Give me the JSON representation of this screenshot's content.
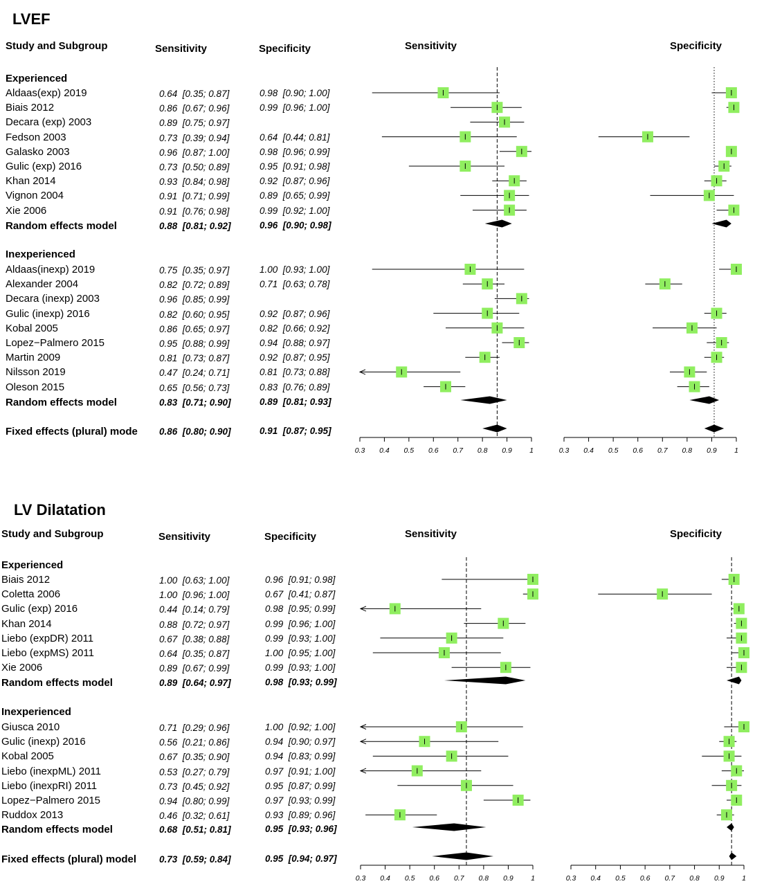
{
  "panels": [
    {
      "title": "LVEF",
      "headers": {
        "study": "Study and Subgroup",
        "sens": "Sensitivity",
        "spec": "Specificity",
        "sens_plot": "Sensitivity",
        "spec_plot": "Specificity"
      },
      "groups": [
        {
          "label": "Experienced",
          "studies": [
            {
              "name": "Aldaas(exp) 2019",
              "sens": "0.64  [0.35; 0.87]",
              "spec": "0.98  [0.90; 1.00]"
            },
            {
              "name": "Biais 2012",
              "sens": "0.86  [0.67; 0.96]",
              "spec": "0.99  [0.96; 1.00]"
            },
            {
              "name": "Decara (exp) 2003",
              "sens": "0.89  [0.75; 0.97]",
              "spec": ""
            },
            {
              "name": "Fedson 2003",
              "sens": "0.73  [0.39; 0.94]",
              "spec": "0.64  [0.44; 0.81]"
            },
            {
              "name": "Galasko 2003",
              "sens": "0.96  [0.87; 1.00]",
              "spec": "0.98  [0.96; 0.99]"
            },
            {
              "name": "Gulic (exp) 2016",
              "sens": "0.73  [0.50; 0.89]",
              "spec": "0.95  [0.91; 0.98]"
            },
            {
              "name": "Khan 2014",
              "sens": "0.93  [0.84; 0.98]",
              "spec": "0.92  [0.87; 0.96]"
            },
            {
              "name": "Vignon 2004",
              "sens": "0.91  [0.71; 0.99]",
              "spec": "0.89  [0.65; 0.99]"
            },
            {
              "name": "Xie 2006",
              "sens": "0.91  [0.76; 0.98]",
              "spec": "0.99  [0.92; 1.00]"
            }
          ],
          "summary": {
            "name": "Random effects model",
            "sens": "0.88  [0.81; 0.92]",
            "spec": "0.96  [0.90; 0.98]"
          }
        },
        {
          "label": "Inexperienced",
          "studies": [
            {
              "name": "Aldaas(inexp) 2019",
              "sens": "0.75  [0.35; 0.97]",
              "spec": "1.00  [0.93; 1.00]"
            },
            {
              "name": "Alexander 2004",
              "sens": "0.82  [0.72; 0.89]",
              "spec": "0.71  [0.63; 0.78]"
            },
            {
              "name": "Decara (inexp) 2003",
              "sens": "0.96  [0.85; 0.99]",
              "spec": ""
            },
            {
              "name": "Gulic (inexp) 2016",
              "sens": "0.82  [0.60; 0.95]",
              "spec": "0.92  [0.87; 0.96]"
            },
            {
              "name": "Kobal 2005",
              "sens": "0.86  [0.65; 0.97]",
              "spec": "0.82  [0.66; 0.92]"
            },
            {
              "name": "Lopez−Palmero 2015",
              "sens": "0.95  [0.88; 0.99]",
              "spec": "0.94  [0.88; 0.97]"
            },
            {
              "name": "Martin 2009",
              "sens": "0.81  [0.73; 0.87]",
              "spec": "0.92  [0.87; 0.95]"
            },
            {
              "name": "Nilsson 2019",
              "sens": "0.47  [0.24; 0.71]",
              "spec": "0.81  [0.73; 0.88]"
            },
            {
              "name": "Oleson 2015",
              "sens": "0.65  [0.56; 0.73]",
              "spec": "0.83  [0.76; 0.89]"
            }
          ],
          "summary": {
            "name": "Random effects model",
            "sens": "0.83  [0.71; 0.90]",
            "spec": "0.89  [0.81; 0.93]"
          }
        }
      ],
      "overall": {
        "name": "Fixed effects (plural) mode",
        "sens": "0.86  [0.80; 0.90]",
        "spec": "0.91  [0.87; 0.95]"
      }
    },
    {
      "title": "LV Dilatation",
      "headers": {
        "study": "Study and Subgroup",
        "sens": "Sensitivity",
        "spec": "Specificity",
        "sens_plot": "Sensitivity",
        "spec_plot": "Specificity"
      },
      "groups": [
        {
          "label": "Experienced",
          "studies": [
            {
              "name": "Biais 2012",
              "sens": "1.00  [0.63; 1.00]",
              "spec": "0.96  [0.91; 0.98]"
            },
            {
              "name": "Coletta 2006",
              "sens": "1.00  [0.96; 1.00]",
              "spec": "0.67  [0.41; 0.87]"
            },
            {
              "name": "Gulic (exp) 2016",
              "sens": "0.44  [0.14; 0.79]",
              "spec": "0.98  [0.95; 0.99]"
            },
            {
              "name": "Khan 2014",
              "sens": "0.88  [0.72; 0.97]",
              "spec": "0.99  [0.96; 1.00]"
            },
            {
              "name": "Liebo (expDR) 2011",
              "sens": "0.67  [0.38; 0.88]",
              "spec": "0.99  [0.93; 1.00]"
            },
            {
              "name": "Liebo (expMS) 2011",
              "sens": "0.64  [0.35; 0.87]",
              "spec": "1.00  [0.95; 1.00]"
            },
            {
              "name": "Xie 2006",
              "sens": "0.89  [0.67; 0.99]",
              "spec": "0.99  [0.93; 1.00]"
            }
          ],
          "summary": {
            "name": "Random effects model",
            "sens": "0.89  [0.64; 0.97]",
            "spec": "0.98  [0.93; 0.99]"
          }
        },
        {
          "label": "Inexperienced",
          "studies": [
            {
              "name": "Giusca 2010",
              "sens": "0.71  [0.29; 0.96]",
              "spec": "1.00  [0.92; 1.00]"
            },
            {
              "name": "Gulic (inexp) 2016",
              "sens": "0.56  [0.21; 0.86]",
              "spec": "0.94  [0.90; 0.97]"
            },
            {
              "name": "Kobal 2005",
              "sens": "0.67  [0.35; 0.90]",
              "spec": "0.94  [0.83; 0.99]"
            },
            {
              "name": "Liebo (inexpML) 2011",
              "sens": "0.53  [0.27; 0.79]",
              "spec": "0.97  [0.91; 1.00]"
            },
            {
              "name": "Liebo (inexpRI) 2011",
              "sens": "0.73  [0.45; 0.92]",
              "spec": "0.95  [0.87; 0.99]"
            },
            {
              "name": "Lopez−Palmero 2015",
              "sens": "0.94  [0.80; 0.99]",
              "spec": "0.97  [0.93; 0.99]"
            },
            {
              "name": "Ruddox 2013",
              "sens": "0.46  [0.32; 0.61]",
              "spec": "0.93  [0.89; 0.96]"
            }
          ],
          "summary": {
            "name": "Random effects model",
            "sens": "0.68  [0.51; 0.81]",
            "spec": "0.95  [0.93; 0.96]"
          }
        }
      ],
      "overall": {
        "name": "Fixed effects (plural) model",
        "sens": "0.73  [0.59; 0.84]",
        "spec": "0.95  [0.94; 0.97]"
      }
    }
  ],
  "colors": {
    "marker": "#90ee60",
    "line": "#000000",
    "diamond": "#000000"
  },
  "chart_data": [
    {
      "type": "forest",
      "title": "LVEF",
      "xlim": [
        0.3,
        1.0
      ],
      "ticks": [
        "0.3",
        "0.4",
        "0.5",
        "0.6",
        "0.7",
        "0.8",
        "0.9",
        "1"
      ],
      "sensitivity": {
        "reference_line": 0.86,
        "reference_style": "dashed",
        "studies": [
          [
            0.64,
            0.35,
            0.87
          ],
          [
            0.86,
            0.67,
            0.96
          ],
          [
            0.89,
            0.75,
            0.97
          ],
          [
            0.73,
            0.39,
            0.94
          ],
          [
            0.96,
            0.87,
            1.0
          ],
          [
            0.73,
            0.5,
            0.89
          ],
          [
            0.93,
            0.84,
            0.98
          ],
          [
            0.91,
            0.71,
            0.99
          ],
          [
            0.91,
            0.76,
            0.98
          ],
          [
            0.75,
            0.35,
            0.97
          ],
          [
            0.82,
            0.72,
            0.89
          ],
          [
            0.96,
            0.85,
            0.99
          ],
          [
            0.82,
            0.6,
            0.95
          ],
          [
            0.86,
            0.65,
            0.97
          ],
          [
            0.95,
            0.88,
            0.99
          ],
          [
            0.81,
            0.73,
            0.87
          ],
          [
            0.47,
            0.24,
            0.71
          ],
          [
            0.65,
            0.56,
            0.73
          ]
        ],
        "summaries": [
          [
            0.88,
            0.81,
            0.92
          ],
          [
            0.83,
            0.71,
            0.9
          ]
        ],
        "overall": [
          0.86,
          0.8,
          0.9
        ]
      },
      "specificity": {
        "reference_line": 0.91,
        "reference_style": "dotted",
        "studies": [
          [
            0.98,
            0.9,
            1.0
          ],
          [
            0.99,
            0.96,
            1.0
          ],
          null,
          [
            0.64,
            0.44,
            0.81
          ],
          [
            0.98,
            0.96,
            0.99
          ],
          [
            0.95,
            0.91,
            0.98
          ],
          [
            0.92,
            0.87,
            0.96
          ],
          [
            0.89,
            0.65,
            0.99
          ],
          [
            0.99,
            0.92,
            1.0
          ],
          [
            1.0,
            0.93,
            1.0
          ],
          [
            0.71,
            0.63,
            0.78
          ],
          null,
          [
            0.92,
            0.87,
            0.96
          ],
          [
            0.82,
            0.66,
            0.92
          ],
          [
            0.94,
            0.88,
            0.97
          ],
          [
            0.92,
            0.87,
            0.95
          ],
          [
            0.81,
            0.73,
            0.88
          ],
          [
            0.83,
            0.76,
            0.89
          ]
        ],
        "summaries": [
          [
            0.96,
            0.9,
            0.98
          ],
          [
            0.89,
            0.81,
            0.93
          ]
        ],
        "overall": [
          0.91,
          0.87,
          0.95
        ]
      }
    },
    {
      "type": "forest",
      "title": "LV Dilatation",
      "xlim": [
        0.3,
        1.0
      ],
      "ticks": [
        "0.3",
        "0.4",
        "0.5",
        "0.6",
        "0.7",
        "0.8",
        "0.9",
        "1"
      ],
      "sensitivity": {
        "reference_line": 0.73,
        "reference_style": "dashed",
        "studies": [
          [
            1.0,
            0.63,
            1.0
          ],
          [
            1.0,
            0.96,
            1.0
          ],
          [
            0.44,
            0.14,
            0.79
          ],
          [
            0.88,
            0.72,
            0.97
          ],
          [
            0.67,
            0.38,
            0.88
          ],
          [
            0.64,
            0.35,
            0.87
          ],
          [
            0.89,
            0.67,
            0.99
          ],
          [
            0.71,
            0.29,
            0.96
          ],
          [
            0.56,
            0.21,
            0.86
          ],
          [
            0.67,
            0.35,
            0.9
          ],
          [
            0.53,
            0.27,
            0.79
          ],
          [
            0.73,
            0.45,
            0.92
          ],
          [
            0.94,
            0.8,
            0.99
          ],
          [
            0.46,
            0.32,
            0.61
          ]
        ],
        "summaries": [
          [
            0.89,
            0.64,
            0.97
          ],
          [
            0.68,
            0.51,
            0.81
          ]
        ],
        "overall": [
          0.73,
          0.59,
          0.84
        ]
      },
      "specificity": {
        "reference_line": 0.95,
        "reference_style": "dashed",
        "studies": [
          [
            0.96,
            0.91,
            0.98
          ],
          [
            0.67,
            0.41,
            0.87
          ],
          [
            0.98,
            0.95,
            0.99
          ],
          [
            0.99,
            0.96,
            1.0
          ],
          [
            0.99,
            0.93,
            1.0
          ],
          [
            1.0,
            0.95,
            1.0
          ],
          [
            0.99,
            0.93,
            1.0
          ],
          [
            1.0,
            0.92,
            1.0
          ],
          [
            0.94,
            0.9,
            0.97
          ],
          [
            0.94,
            0.83,
            0.99
          ],
          [
            0.97,
            0.91,
            1.0
          ],
          [
            0.95,
            0.87,
            0.99
          ],
          [
            0.97,
            0.93,
            0.99
          ],
          [
            0.93,
            0.89,
            0.96
          ]
        ],
        "summaries": [
          [
            0.98,
            0.93,
            0.99
          ],
          [
            0.95,
            0.93,
            0.96
          ]
        ],
        "overall": [
          0.95,
          0.94,
          0.97
        ]
      }
    }
  ]
}
